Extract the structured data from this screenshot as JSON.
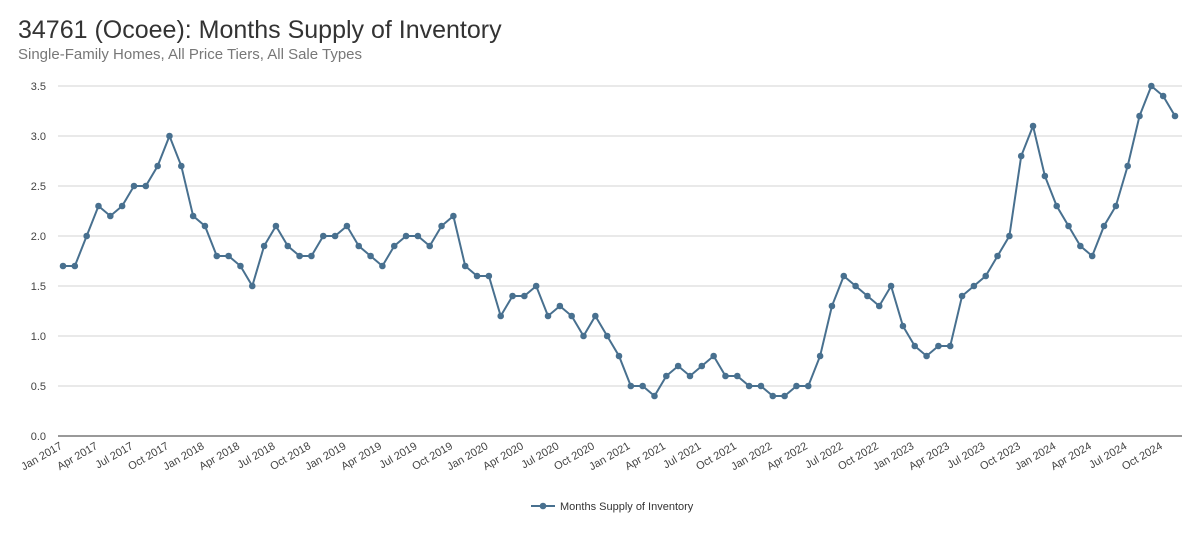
{
  "chart_data": {
    "type": "line",
    "title": "34761 (Ocoee): Months Supply of Inventory",
    "subtitle": "Single-Family Homes, All Price Tiers, All Sale Types",
    "xlabel": "",
    "ylabel": "",
    "ylim": [
      0,
      3.5
    ],
    "y_ticks": [
      "0.0",
      "0.5",
      "1.0",
      "1.5",
      "2.0",
      "2.5",
      "3.0",
      "3.5"
    ],
    "x_tick_labels": [
      "Jan 2017",
      "Apr 2017",
      "Jul 2017",
      "Oct 2017",
      "Jan 2018",
      "Apr 2018",
      "Jul 2018",
      "Oct 2018",
      "Jan 2019",
      "Apr 2019",
      "Jul 2019",
      "Oct 2019",
      "Jan 2020",
      "Apr 2020",
      "Jul 2020",
      "Oct 2020",
      "Jan 2021",
      "Apr 2021",
      "Jul 2021",
      "Oct 2021",
      "Jan 2022",
      "Apr 2022",
      "Jul 2022",
      "Oct 2022",
      "Jan 2023",
      "Apr 2023",
      "Jul 2023",
      "Oct 2023",
      "Jan 2024",
      "Apr 2024",
      "Jul 2024",
      "Oct 2024"
    ],
    "grid": true,
    "legend_position": "bottom-center",
    "color": "#48708f",
    "series": [
      {
        "name": "Months Supply of Inventory",
        "values": [
          1.7,
          1.7,
          2.0,
          2.3,
          2.2,
          2.3,
          2.5,
          2.5,
          2.7,
          3.0,
          2.7,
          2.2,
          2.1,
          1.8,
          1.8,
          1.7,
          1.5,
          1.9,
          2.1,
          1.9,
          1.8,
          1.8,
          2.0,
          2.0,
          2.1,
          1.9,
          1.8,
          1.7,
          1.9,
          2.0,
          2.0,
          1.9,
          2.1,
          2.2,
          1.7,
          1.6,
          1.6,
          1.2,
          1.4,
          1.4,
          1.5,
          1.2,
          1.3,
          1.2,
          1.0,
          1.2,
          1.0,
          0.8,
          0.5,
          0.5,
          0.4,
          0.6,
          0.7,
          0.6,
          0.7,
          0.8,
          0.6,
          0.6,
          0.5,
          0.5,
          0.4,
          0.4,
          0.5,
          0.5,
          0.8,
          1.3,
          1.6,
          1.5,
          1.4,
          1.3,
          1.5,
          1.1,
          0.9,
          0.8,
          0.9,
          0.9,
          1.4,
          1.5,
          1.6,
          1.8,
          2.0,
          2.8,
          3.1,
          2.6,
          2.3,
          2.1,
          1.9,
          1.8,
          2.1,
          2.3,
          2.7,
          3.2,
          3.5,
          3.4,
          3.2
        ]
      }
    ]
  }
}
